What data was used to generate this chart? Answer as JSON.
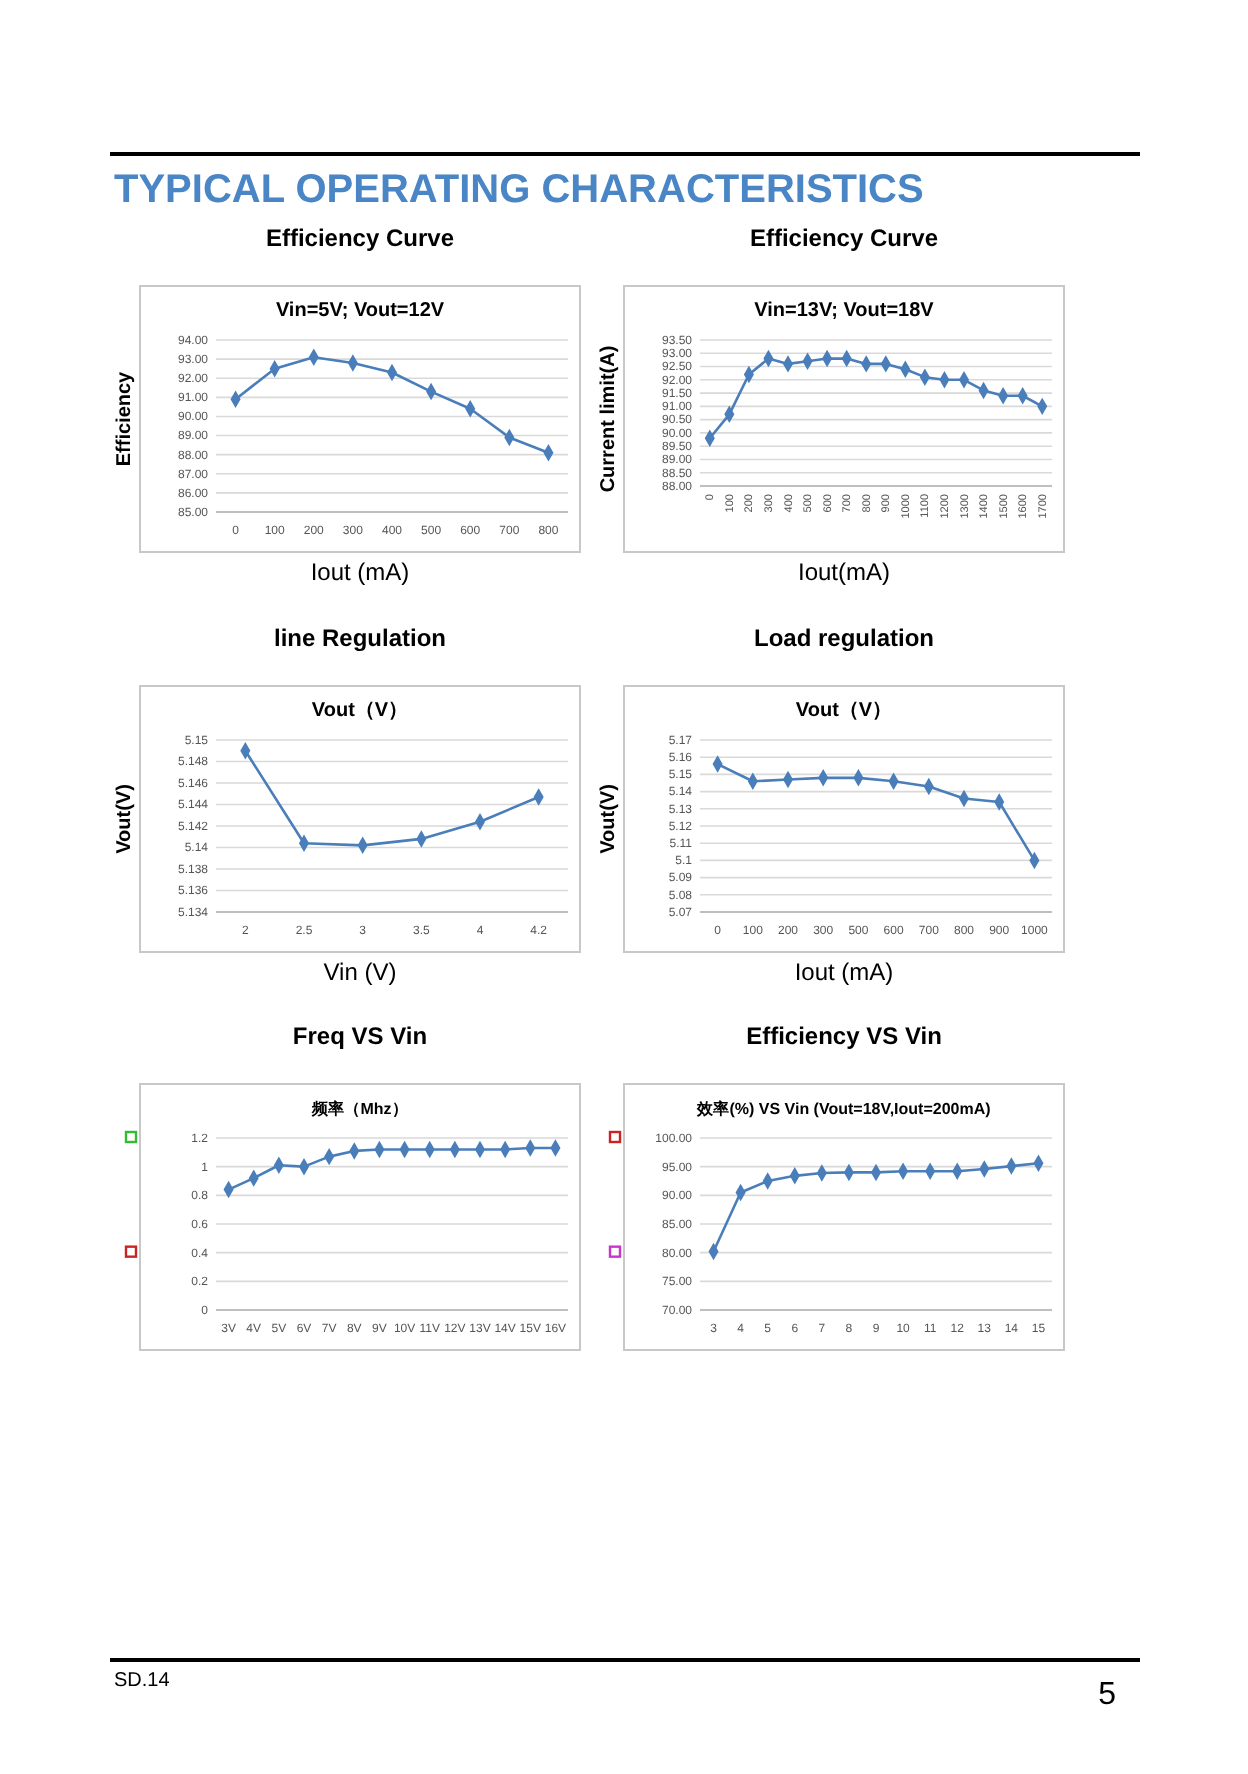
{
  "chart_data": [
    {
      "type": "line",
      "title": "Efficiency Curve",
      "subtitle": "Vin=5V; Vout=12V",
      "xlabel": "Iout (mA)",
      "ylabel": "Efficiency",
      "annotations": [
        "TYPICAL OPERATING CHARACTERISTICS"
      ],
      "categories": [
        "0",
        "100",
        "200",
        "300",
        "400",
        "500",
        "600",
        "700",
        "800"
      ],
      "values": [
        90.9,
        92.5,
        93.1,
        92.8,
        92.3,
        91.3,
        90.4,
        88.9,
        88.1
      ],
      "color": "#4a7ebb",
      "ylim": [
        85,
        94
      ],
      "yticks": [
        {
          "value": 85,
          "label": "85.00"
        },
        {
          "value": 86,
          "label": "86.00"
        },
        {
          "value": 87,
          "label": "87.00"
        },
        {
          "value": 88,
          "label": "88.00"
        },
        {
          "value": 89,
          "label": "89.00"
        },
        {
          "value": 90,
          "label": "90.00"
        },
        {
          "value": 91,
          "label": "91.00"
        },
        {
          "value": 92,
          "label": "92.00"
        },
        {
          "value": 93,
          "label": "93.00"
        },
        {
          "value": 94,
          "label": "94.00"
        }
      ],
      "grid": "y",
      "marker": "diamond",
      "line_style": "solid"
    },
    {
      "type": "line",
      "title": "Efficiency Curve",
      "subtitle": "Vin=13V; Vout=18V",
      "xlabel": "Iout(mA)",
      "ylabel": "Current limit(A)",
      "categories": [
        "0",
        "100",
        "200",
        "300",
        "400",
        "500",
        "600",
        "700",
        "800",
        "900",
        "1000",
        "1100",
        "1200",
        "1300",
        "1400",
        "1500",
        "1600",
        "1700"
      ],
      "values": [
        89.8,
        90.7,
        92.2,
        92.8,
        92.6,
        92.7,
        92.8,
        92.8,
        92.6,
        92.6,
        92.4,
        92.1,
        92.0,
        92.0,
        91.6,
        91.4,
        91.4,
        91.0
      ],
      "color": "#4a7ebb",
      "ylim": [
        88,
        93.5
      ],
      "yticks": [
        {
          "value": 88,
          "label": "88.00"
        },
        {
          "value": 88.5,
          "label": "88.50"
        },
        {
          "value": 89,
          "label": "89.00"
        },
        {
          "value": 89.5,
          "label": "89.50"
        },
        {
          "value": 90,
          "label": "90.00"
        },
        {
          "value": 90.5,
          "label": "90.50"
        },
        {
          "value": 91,
          "label": "91.00"
        },
        {
          "value": 91.5,
          "label": "91.50"
        },
        {
          "value": 92,
          "label": "92.00"
        },
        {
          "value": 92.5,
          "label": "92.50"
        },
        {
          "value": 93,
          "label": "93.00"
        },
        {
          "value": 93.5,
          "label": "93.50"
        }
      ],
      "grid": "y",
      "marker": "diamond",
      "line_style": "solid"
    },
    {
      "type": "line",
      "title": "line Regulation",
      "subtitle": "Vout（V）",
      "xlabel": "Vin (V)",
      "ylabel": "Vout(V)",
      "categories": [
        "2",
        "2.5",
        "3",
        "3.5",
        "4",
        "4.2"
      ],
      "values": [
        5.149,
        5.1404,
        5.1402,
        5.1408,
        5.1424,
        5.1447
      ],
      "color": "#4a7ebb",
      "ylim": [
        5.134,
        5.15
      ],
      "yticks": [
        5.134,
        5.136,
        5.138,
        5.14,
        5.142,
        5.144,
        5.146,
        5.148,
        5.15
      ],
      "grid": "y",
      "marker": "diamond",
      "line_style": "solid"
    },
    {
      "type": "line",
      "title": "Load regulation",
      "subtitle": "Vout（V）",
      "xlabel": "Iout (mA)",
      "ylabel": "Vout(V)",
      "categories": [
        "0",
        "100",
        "200",
        "300",
        "500",
        "600",
        "700",
        "800",
        "900",
        "1000"
      ],
      "values": [
        5.156,
        5.146,
        5.147,
        5.148,
        5.148,
        5.146,
        5.143,
        5.136,
        5.134,
        5.1
      ],
      "color": "#4a7ebb",
      "ylim": [
        5.07,
        5.17
      ],
      "yticks": [
        5.07,
        5.08,
        5.09,
        5.1,
        5.11,
        5.12,
        5.13,
        5.14,
        5.15,
        5.16,
        5.17
      ],
      "grid": "y",
      "marker": "diamond",
      "line_style": "solid"
    },
    {
      "type": "line",
      "title": "Freq VS Vin",
      "subtitle": "频率（Mhz）",
      "categories": [
        "3V",
        "4V",
        "5V",
        "6V",
        "7V",
        "8V",
        "9V",
        "10V",
        "11V",
        "12V",
        "13V",
        "14V",
        "15V",
        "16V"
      ],
      "values": [
        0.84,
        0.92,
        1.01,
        1.0,
        1.07,
        1.11,
        1.12,
        1.12,
        1.12,
        1.12,
        1.12,
        1.12,
        1.13,
        1.13
      ],
      "color": "#4a7ebb",
      "ylim": [
        0,
        1.2
      ],
      "yticks": [
        0,
        0.2,
        0.4,
        0.6,
        0.8,
        1,
        1.2
      ],
      "grid": "y",
      "marker": "diamond",
      "line_style": "solid"
    },
    {
      "type": "line",
      "title": "Efficiency VS Vin",
      "subtitle": "效率(%) VS  Vin (Vout=18V,Iout=200mA)",
      "annotations": [
        "SD.14",
        "5"
      ],
      "categories": [
        "3",
        "4",
        "5",
        "6",
        "7",
        "8",
        "9",
        "10",
        "11",
        "12",
        "13",
        "14",
        "15"
      ],
      "values": [
        80.2,
        90.5,
        92.5,
        93.4,
        93.9,
        94.0,
        94.0,
        94.2,
        94.2,
        94.2,
        94.6,
        95.1,
        95.6
      ],
      "color": "#4a7ebb",
      "ylim": [
        70,
        100
      ],
      "yticks": [
        {
          "value": 70,
          "label": "70.00"
        },
        {
          "value": 75,
          "label": "75.00"
        },
        {
          "value": 80,
          "label": "80.00"
        },
        {
          "value": 85,
          "label": "85.00"
        },
        {
          "value": 90,
          "label": "90.00"
        },
        {
          "value": 95,
          "label": "95.00"
        },
        {
          "value": 100,
          "label": "100.00"
        }
      ],
      "grid": "y",
      "marker": "diamond",
      "line_style": "solid"
    }
  ]
}
